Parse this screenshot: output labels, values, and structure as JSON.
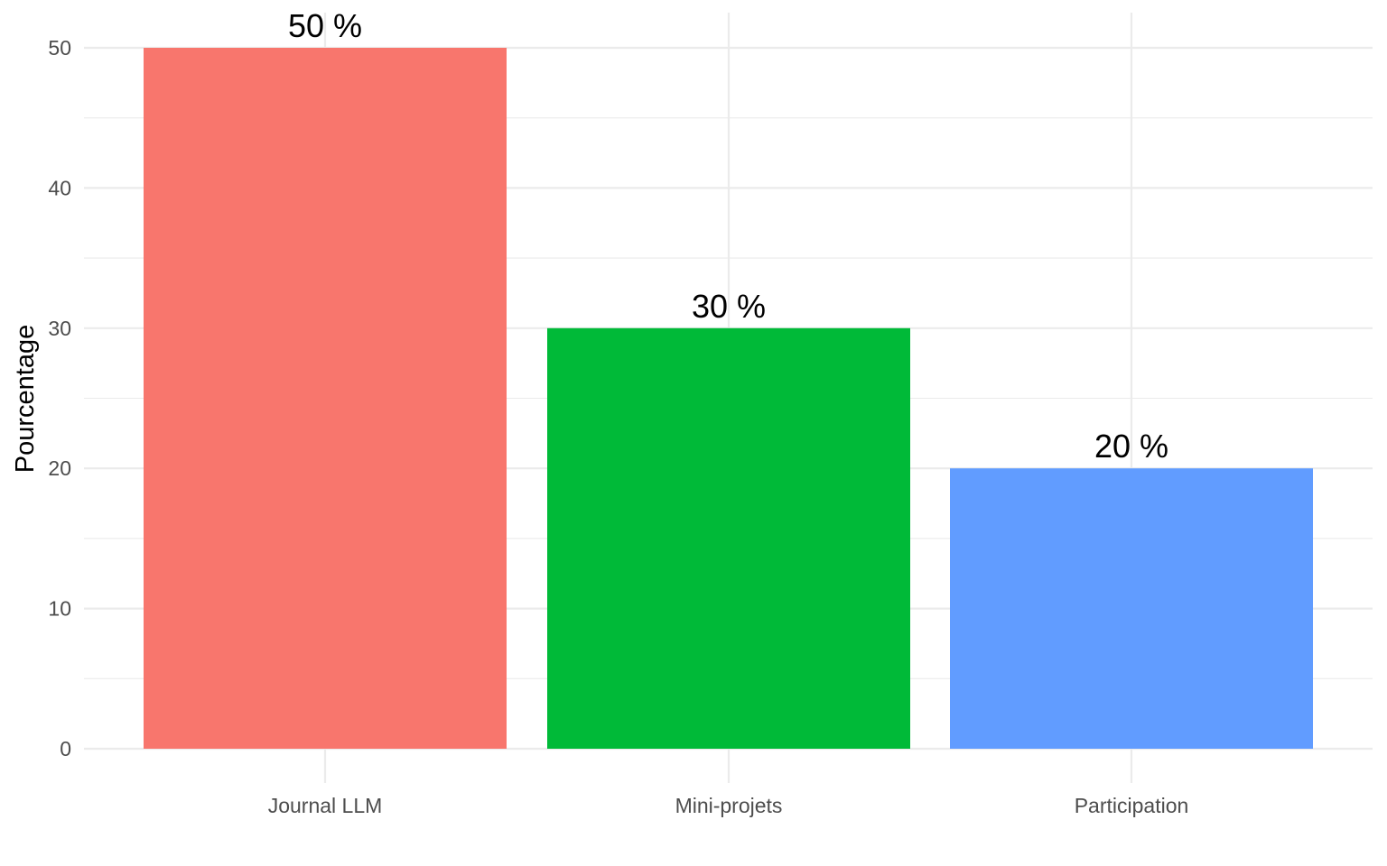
{
  "chart_data": {
    "type": "bar",
    "title": "",
    "xlabel": "",
    "ylabel": "Pourcentage",
    "categories": [
      "Journal LLM",
      "Mini-projets",
      "Participation"
    ],
    "values": [
      50,
      30,
      20
    ],
    "data_labels": [
      "50 %",
      "30 %",
      "20 %"
    ],
    "colors": [
      "#F8766D",
      "#00BA38",
      "#619CFF"
    ],
    "y_ticks": [
      0,
      10,
      20,
      30,
      40,
      50
    ],
    "ylim": [
      0,
      52.5
    ],
    "grid": true,
    "legend": "none"
  }
}
